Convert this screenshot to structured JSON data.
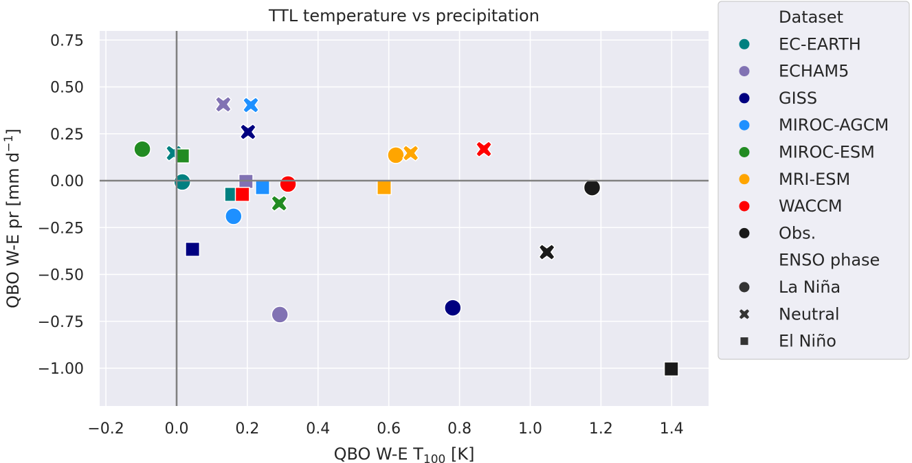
{
  "chart_data": {
    "type": "scatter",
    "title": "TTL temperature vs precipitation",
    "xlabel": {
      "main": "QBO W-E T",
      "sub": "100",
      "unit": " [K]"
    },
    "ylabel": {
      "main": "QBO W-E pr [mm d",
      "sup": "−1",
      "end": "]"
    },
    "xlim": [
      -0.22,
      1.5
    ],
    "ylim": [
      -1.2,
      0.8
    ],
    "xticks": [
      -0.2,
      0.0,
      0.2,
      0.4,
      0.6,
      0.8,
      1.0,
      1.2,
      1.4
    ],
    "xtick_labels": [
      "−0.2",
      "0.0",
      "0.2",
      "0.4",
      "0.6",
      "0.8",
      "1.0",
      "1.2",
      "1.4"
    ],
    "yticks": [
      0.75,
      0.5,
      0.25,
      0.0,
      -0.25,
      -0.5,
      -0.75,
      -1.0
    ],
    "ytick_labels": [
      "0.75",
      "0.50",
      "0.25",
      "0.00",
      "−0.25",
      "−0.50",
      "−0.75",
      "−1.00"
    ],
    "grid": true,
    "zero_lines": true,
    "legend": {
      "placement": "outside-right",
      "dataset_title": "Dataset",
      "phase_title": "ENSO phase",
      "datasets": [
        {
          "name": "EC-EARTH",
          "color": "#008080"
        },
        {
          "name": "ECHAM5",
          "color": "#8172b3"
        },
        {
          "name": "GISS",
          "color": "#000080"
        },
        {
          "name": "MIROC-AGCM",
          "color": "#1e90ff"
        },
        {
          "name": "MIROC-ESM",
          "color": "#228b22"
        },
        {
          "name": "MRI-ESM",
          "color": "#ffa500"
        },
        {
          "name": "WACCM",
          "color": "#ff0000"
        },
        {
          "name": "Obs.",
          "color": "#1a1a1a"
        }
      ],
      "phases": [
        {
          "name": "La Niña",
          "marker": "circle"
        },
        {
          "name": "Neutral",
          "marker": "x"
        },
        {
          "name": "El Niño",
          "marker": "square"
        }
      ]
    },
    "points": [
      {
        "dataset": "MIROC-ESM",
        "phase": "La Niña",
        "x": -0.097,
        "y": 0.168
      },
      {
        "dataset": "EC-EARTH",
        "phase": "Neutral",
        "x": -0.008,
        "y": 0.147
      },
      {
        "dataset": "MIROC-ESM",
        "phase": "El Niño",
        "x": 0.016,
        "y": 0.132
      },
      {
        "dataset": "EC-EARTH",
        "phase": "La Niña",
        "x": 0.016,
        "y": -0.007
      },
      {
        "dataset": "ECHAM5",
        "phase": "Neutral",
        "x": 0.132,
        "y": 0.407
      },
      {
        "dataset": "MIROC-AGCM",
        "phase": "Neutral",
        "x": 0.21,
        "y": 0.403
      },
      {
        "dataset": "GISS",
        "phase": "Neutral",
        "x": 0.202,
        "y": 0.26
      },
      {
        "dataset": "ECHAM5",
        "phase": "El Niño",
        "x": 0.196,
        "y": -0.004
      },
      {
        "dataset": "MIROC-AGCM",
        "phase": "El Niño",
        "x": 0.243,
        "y": -0.037
      },
      {
        "dataset": "EC-EARTH",
        "phase": "El Niño",
        "x": 0.156,
        "y": -0.073
      },
      {
        "dataset": "WACCM",
        "phase": "El Niño",
        "x": 0.186,
        "y": -0.073
      },
      {
        "dataset": "WACCM",
        "phase": "La Niña",
        "x": 0.315,
        "y": -0.018
      },
      {
        "dataset": "MIROC-ESM",
        "phase": "Neutral",
        "x": 0.29,
        "y": -0.121
      },
      {
        "dataset": "MIROC-AGCM",
        "phase": "La Niña",
        "x": 0.161,
        "y": -0.19
      },
      {
        "dataset": "GISS",
        "phase": "El Niño",
        "x": 0.045,
        "y": -0.366
      },
      {
        "dataset": "ECHAM5",
        "phase": "La Niña",
        "x": 0.292,
        "y": -0.714
      },
      {
        "dataset": "MRI-ESM",
        "phase": "La Niña",
        "x": 0.62,
        "y": 0.136
      },
      {
        "dataset": "MRI-ESM",
        "phase": "Neutral",
        "x": 0.662,
        "y": 0.147
      },
      {
        "dataset": "MRI-ESM",
        "phase": "El Niño",
        "x": 0.587,
        "y": -0.037
      },
      {
        "dataset": "WACCM",
        "phase": "Neutral",
        "x": 0.869,
        "y": 0.168
      },
      {
        "dataset": "GISS",
        "phase": "La Niña",
        "x": 0.781,
        "y": -0.678
      },
      {
        "dataset": "Obs.",
        "phase": "La Niña",
        "x": 1.175,
        "y": -0.037
      },
      {
        "dataset": "Obs.",
        "phase": "Neutral",
        "x": 1.047,
        "y": -0.381
      },
      {
        "dataset": "Obs.",
        "phase": "El Niño",
        "x": 1.399,
        "y": -1.004
      }
    ]
  }
}
